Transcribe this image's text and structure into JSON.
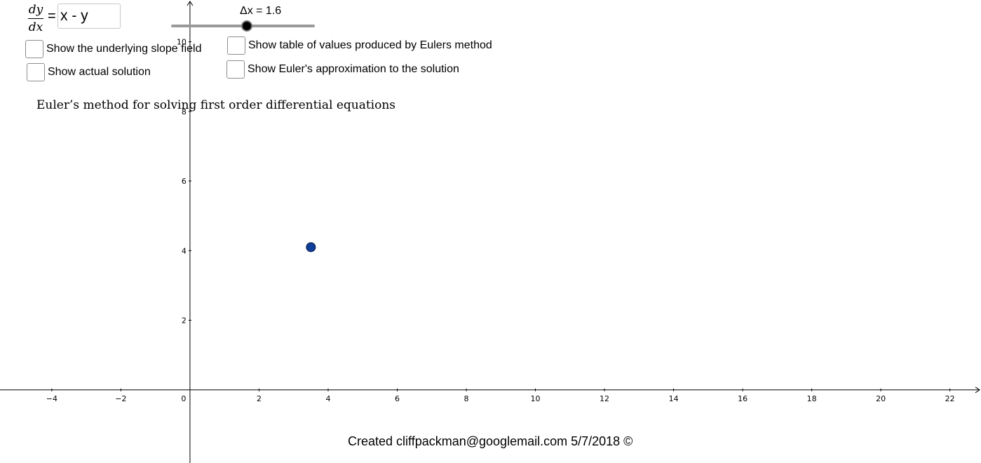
{
  "equation": {
    "numerator": "dy",
    "denominator": "dx",
    "equals": "=",
    "input_value": "x - y"
  },
  "slider": {
    "label": "Δx = 1.6",
    "value": 1.6
  },
  "checkboxes": {
    "slope_field": {
      "label": "Show the underlying slope field",
      "checked": false
    },
    "actual_solution": {
      "label": "Show actual solution",
      "checked": false
    },
    "table_values": {
      "label": "Show table of values produced by Eulers method",
      "checked": false
    },
    "euler_approx": {
      "label": "Show Euler's approximation to the solution",
      "checked": false
    }
  },
  "title": "Euler’s method for solving first order differential equations",
  "credit": "Created cliffpackman@googlemail.com 5/7/2018 ©",
  "chart_data": {
    "type": "scatter",
    "x_ticks": [
      "−4",
      "−2",
      "0",
      "2",
      "4",
      "6",
      "8",
      "10",
      "12",
      "14",
      "16",
      "18",
      "20",
      "22"
    ],
    "y_ticks": [
      "2",
      "4",
      "6",
      "8",
      "10"
    ],
    "xlim": [
      -5.5,
      22.9
    ],
    "ylim": [
      -2.1,
      11.2
    ],
    "points": [
      {
        "name": "initial-point",
        "x": 3.5,
        "y": 4.1
      }
    ],
    "point_color": "#0d3f9a",
    "axis_color": "#000000"
  }
}
